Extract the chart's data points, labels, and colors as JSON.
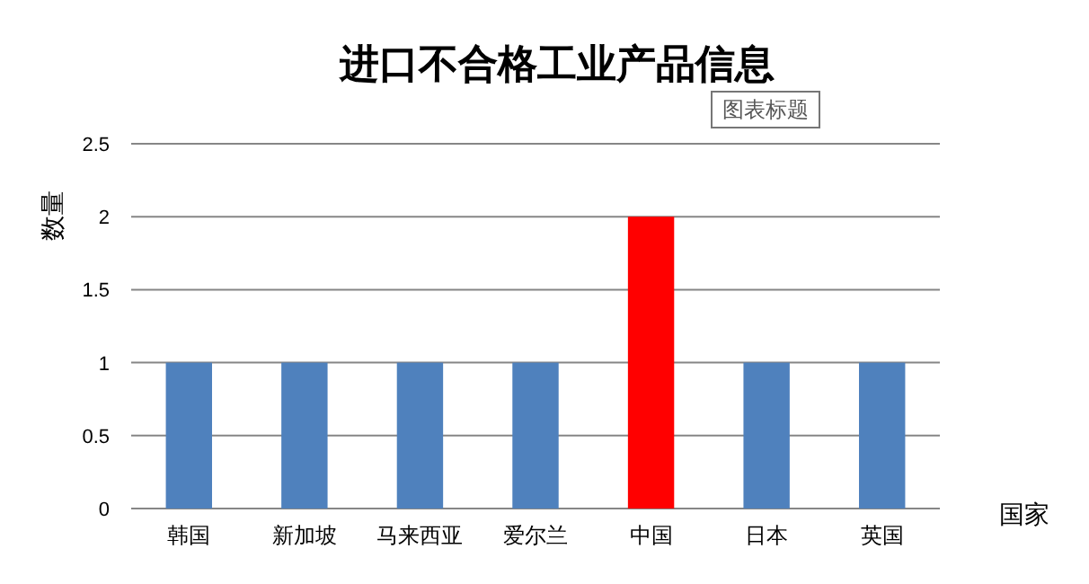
{
  "chart_data": {
    "type": "bar",
    "title": "进口不合格工业产品信息",
    "xlabel": "国家",
    "ylabel": "数量",
    "annotations": [
      "图表标题"
    ],
    "categories": [
      "韩国",
      "新加坡",
      "马来西亚",
      "爱尔兰",
      "中国",
      "日本",
      "英国"
    ],
    "values": [
      1,
      1,
      1,
      1,
      2,
      1,
      1
    ],
    "colors": [
      "#4f81bd",
      "#4f81bd",
      "#4f81bd",
      "#4f81bd",
      "#ff0000",
      "#4f81bd",
      "#4f81bd"
    ],
    "ylim": [
      0,
      2.5
    ],
    "yticks": [
      0,
      0.5,
      1,
      1.5,
      2,
      2.5
    ],
    "grid": "y"
  }
}
